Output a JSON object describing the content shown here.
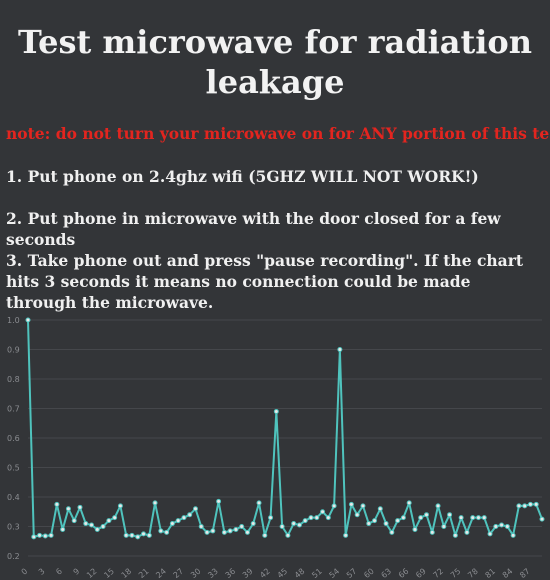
{
  "page": {
    "title": "Test microwave for radiation leakage",
    "warning": "note: do not turn your microwave on for ANY portion of this test",
    "steps": [
      "1. Put phone on 2.4ghz wifi (5GHZ WILL NOT WORK!)",
      "2. Put phone in microwave with the door closed for a few seconds",
      "3. Take phone out and press \"pause recording\". If the chart hits 3 seconds it means no connection could be made through the microwave."
    ]
  },
  "colors": {
    "background": "#333538",
    "warning": "#e3251f",
    "line": "#4fc3bd",
    "grid": "#45474b"
  },
  "chart_data": {
    "type": "line",
    "title": "",
    "xlabel": "",
    "ylabel": "",
    "ylim": [
      0.2,
      1.0
    ],
    "yticks": [
      "0.2",
      "0.3",
      "0.4",
      "0.5",
      "0.6",
      "0.7",
      "0.8",
      "0.9",
      "1.0"
    ],
    "xticks": [
      "0",
      "3",
      "6",
      "9",
      "12",
      "15",
      "18",
      "21",
      "24",
      "27",
      "30",
      "33",
      "36",
      "39",
      "42",
      "45",
      "48",
      "51",
      "54",
      "57",
      "60",
      "63",
      "66",
      "69",
      "72",
      "75",
      "78",
      "81",
      "84",
      "87"
    ],
    "x": [
      0,
      1,
      2,
      3,
      4,
      5,
      6,
      7,
      8,
      9,
      10,
      11,
      12,
      13,
      14,
      15,
      16,
      17,
      18,
      19,
      20,
      21,
      22,
      23,
      24,
      25,
      26,
      27,
      28,
      29,
      30,
      31,
      32,
      33,
      34,
      35,
      36,
      37,
      38,
      39,
      40,
      41,
      42,
      43,
      44,
      45,
      46,
      47,
      48,
      49,
      50,
      51,
      52,
      53,
      54,
      55,
      56,
      57,
      58,
      59,
      60,
      61,
      62,
      63,
      64,
      65,
      66,
      67,
      68,
      69,
      70,
      71,
      72,
      73,
      74,
      75,
      76,
      77,
      78,
      79,
      80,
      81,
      82,
      83,
      84,
      85,
      86,
      87,
      88,
      89
    ],
    "series": [
      {
        "name": "",
        "values": [
          1.0,
          0.265,
          0.27,
          0.268,
          0.27,
          0.375,
          0.29,
          0.36,
          0.32,
          0.365,
          0.31,
          0.305,
          0.29,
          0.3,
          0.32,
          0.33,
          0.37,
          0.27,
          0.27,
          0.265,
          0.275,
          0.27,
          0.38,
          0.285,
          0.28,
          0.31,
          0.32,
          0.33,
          0.34,
          0.36,
          0.3,
          0.28,
          0.285,
          0.385,
          0.28,
          0.285,
          0.29,
          0.3,
          0.28,
          0.31,
          0.38,
          0.27,
          0.33,
          0.69,
          0.3,
          0.27,
          0.31,
          0.305,
          0.32,
          0.33,
          0.33,
          0.35,
          0.33,
          0.37,
          0.9,
          0.27,
          0.375,
          0.34,
          0.37,
          0.31,
          0.32,
          0.36,
          0.31,
          0.28,
          0.32,
          0.33,
          0.38,
          0.29,
          0.33,
          0.34,
          0.28,
          0.37,
          0.3,
          0.34,
          0.27,
          0.33,
          0.28,
          0.33,
          0.33,
          0.33,
          0.275,
          0.3,
          0.305,
          0.3,
          0.27,
          0.37,
          0.37,
          0.375,
          0.375,
          0.325
        ]
      }
    ]
  }
}
